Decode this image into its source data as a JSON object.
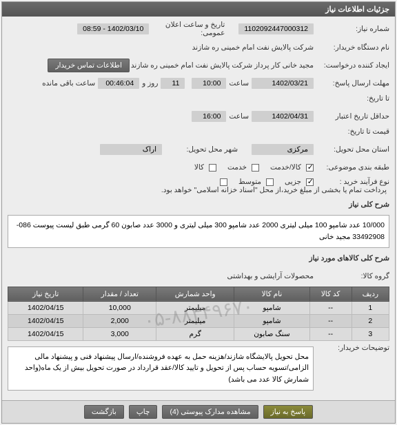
{
  "header": {
    "title": "جزئیات اطلاعات نیاز"
  },
  "fields": {
    "need_number_label": "شماره نیاز:",
    "need_number": "1102092447000312",
    "announce_label": "تاریخ و ساعت اعلان عمومی:",
    "announce_value": "1402/03/10 - 08:59",
    "buyer_org_label": "نام دستگاه خریدار:",
    "buyer_org": "شرکت پالایش نفت امام خمینی ره شازند",
    "creator_label": "ایجاد کننده درخواست:",
    "creator": "مجید خانی کار پرداز شرکت پالایش نفت امام خمینی ره شازند",
    "contact_btn": "اطلاعات تماس خریدار",
    "deadline_label": "مهلت ارسال پاسخ:",
    "deadline_suffix": "تا تاریخ:",
    "deadline_date": "1402/03/21",
    "time_label": "ساعت",
    "deadline_time": "10:00",
    "day_label": "روز و",
    "days": "11",
    "remaining_time": "00:46:04",
    "remaining_label": "ساعت باقی مانده",
    "validity_label": "حداقل تاریخ اعتبار",
    "validity_suffix": "قیمت تا تاریخ:",
    "validity_date": "1402/04/31",
    "validity_time": "16:00",
    "province_label": "استان محل تحویل:",
    "province": "مرکزی",
    "city_label": "شهر محل تحویل:",
    "city": "اراک",
    "category_label": "طبقه بندی موضوعی:",
    "cat_goods": "کالا/خدمت",
    "cat_service": "خدمت",
    "cat_goods_only": "کالا",
    "purchase_type_label": "نوع فرآیند خرید :",
    "pt_partial": "جزیی",
    "pt_medium": "متوسط",
    "pt_note": "پرداخت تمام یا بخشی از مبلغ خرید،از محل \"اسناد خزانه اسلامی\" خواهد بود.",
    "desc_label": "شرح کلی نیاز",
    "desc_text": "10/000 عدد شامپو 100 میلی لیتری 2000 عدد شامپو 300 میلی لیتری و 3000 عدد صابون 60 گرمی طبق لیست پیوست 086-33492908 مجید خانی",
    "goods_label": "شرح کلی کالاهای مورد نیاز",
    "goods_group_label": "گروه کالا:",
    "goods_group": "محصولات آرایشی و بهداشتی"
  },
  "table": {
    "headers": [
      "ردیف",
      "کد کالا",
      "نام کالا",
      "واحد شمارش",
      "تعداد / مقدار",
      "تاریخ نیاز"
    ],
    "rows": [
      [
        "1",
        "--",
        "شامپو",
        "میلیمتر",
        "10,000",
        "1402/04/15"
      ],
      [
        "2",
        "--",
        "شامپو",
        "میلیمتر",
        "2,000",
        "1402/04/15"
      ],
      [
        "3",
        "--",
        "سنگ صابون",
        "گرم",
        "3,000",
        "1402/04/15"
      ]
    ]
  },
  "watermark": "۰۵-۸۸۳۴۹۶۷۰",
  "buyer_notes_label": "توضیحات خریدار:",
  "buyer_notes": "محل تحویل پالایشگاه شازند/هزینه حمل به عهده فروشنده/ارسال پیشنهاد فنی و پیشنهاد مالی الزامی/تسویه حساب پس از تحویل و تایید کالا/عقد قرارداد در صورت تحویل بیش از یک ماه(واحد شمارش کالا عدد می باشد)",
  "footer": {
    "respond": "پاسخ به نیاز",
    "attachments": "مشاهده مدارک پیوستی (4)",
    "print": "چاپ",
    "back": "بازگشت"
  }
}
